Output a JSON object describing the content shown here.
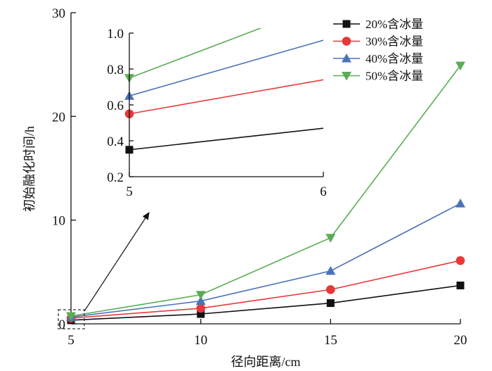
{
  "chart_data": {
    "type": "line",
    "xlabel": "径向距离/cm",
    "ylabel": "初始融化时间/h",
    "x": [
      5,
      10,
      15,
      20
    ],
    "xlim": [
      5,
      20
    ],
    "ylim": [
      0,
      30
    ],
    "xticks": [
      5,
      10,
      15,
      20
    ],
    "yticks": [
      0,
      10,
      20,
      30
    ],
    "legend": "top-right",
    "grid": false,
    "series": [
      {
        "name": "20%含冰量",
        "color": "#111111",
        "marker": "square",
        "values": [
          0.35,
          0.95,
          2.0,
          3.7
        ]
      },
      {
        "name": "30%含冰量",
        "color": "#e8383a",
        "marker": "circle",
        "values": [
          0.55,
          1.5,
          3.3,
          6.1
        ]
      },
      {
        "name": "40%含冰量",
        "color": "#4a72b8",
        "marker": "triangle-up",
        "values": [
          0.65,
          2.2,
          5.1,
          11.6
        ]
      },
      {
        "name": "50%含冰量",
        "color": "#5aad55",
        "marker": "triangle-down",
        "values": [
          0.75,
          2.8,
          8.3,
          24.9
        ]
      }
    ],
    "inset": {
      "xlim": [
        5,
        6
      ],
      "ylim": [
        0.2,
        1.0
      ],
      "xticks": [
        5,
        6
      ],
      "yticks": [
        0.2,
        0.4,
        0.6,
        0.8,
        1.0
      ],
      "ytick_labels": [
        "0.2",
        "0.4",
        "0.6",
        "0.8",
        "1.0"
      ]
    }
  }
}
